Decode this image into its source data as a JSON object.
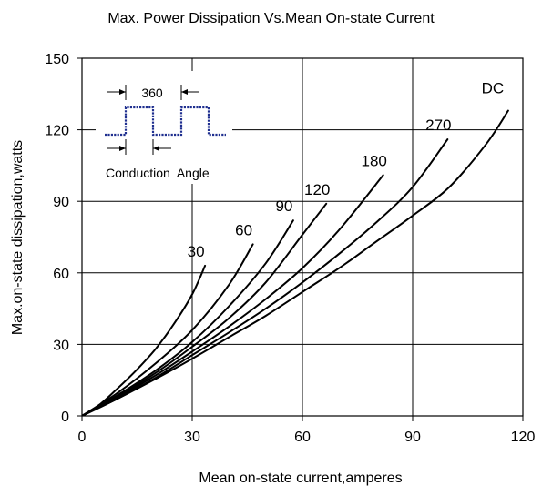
{
  "chart_data": {
    "type": "line",
    "title": "Max. Power Dissipation Vs.Mean On-state Current",
    "xlabel": "Mean on-state current,amperes",
    "ylabel": "Max.on-state dissipation,watts",
    "xlim": [
      0,
      120
    ],
    "ylim": [
      0,
      150
    ],
    "xticks": [
      0,
      30,
      60,
      90,
      120
    ],
    "yticks": [
      0,
      30,
      60,
      90,
      120,
      150
    ],
    "grid": true,
    "series": [
      {
        "name": "30",
        "x": [
          0,
          5,
          10,
          15,
          20,
          25,
          30,
          33.5
        ],
        "y": [
          0,
          5,
          12,
          19.5,
          28,
          38.5,
          51,
          63
        ]
      },
      {
        "name": "60",
        "x": [
          0,
          10,
          20,
          30,
          40,
          46.5
        ],
        "y": [
          0,
          10,
          22,
          36,
          55,
          72
        ]
      },
      {
        "name": "90",
        "x": [
          0,
          10,
          20,
          30,
          40,
          50,
          57.5
        ],
        "y": [
          0,
          9,
          19,
          31,
          46,
          64,
          82
        ]
      },
      {
        "name": "120",
        "x": [
          0,
          10,
          20,
          30,
          40,
          50,
          60,
          66.5
        ],
        "y": [
          0,
          8.5,
          18,
          29,
          41,
          56,
          76,
          89
        ]
      },
      {
        "name": "180",
        "x": [
          0,
          10,
          20,
          30,
          40,
          50,
          60,
          70,
          82
        ],
        "y": [
          0,
          8,
          17,
          27,
          37.5,
          49,
          62,
          78,
          101
        ]
      },
      {
        "name": "270",
        "x": [
          0,
          10,
          20,
          30,
          40,
          50,
          60,
          70,
          80,
          90,
          99.5
        ],
        "y": [
          0,
          7.5,
          16,
          25.5,
          35,
          45,
          56,
          68,
          81,
          96,
          116
        ]
      },
      {
        "name": "DC",
        "x": [
          0,
          10,
          20,
          30,
          40,
          50,
          60,
          70,
          80,
          90,
          100,
          110,
          116
        ],
        "y": [
          0,
          7.5,
          15.5,
          24,
          33,
          42,
          52,
          62,
          73,
          84,
          96,
          114,
          128
        ]
      }
    ],
    "inset": {
      "value_label": "360",
      "caption": "Conduction  Angle",
      "waveform_color": "#1f2f8f"
    }
  }
}
